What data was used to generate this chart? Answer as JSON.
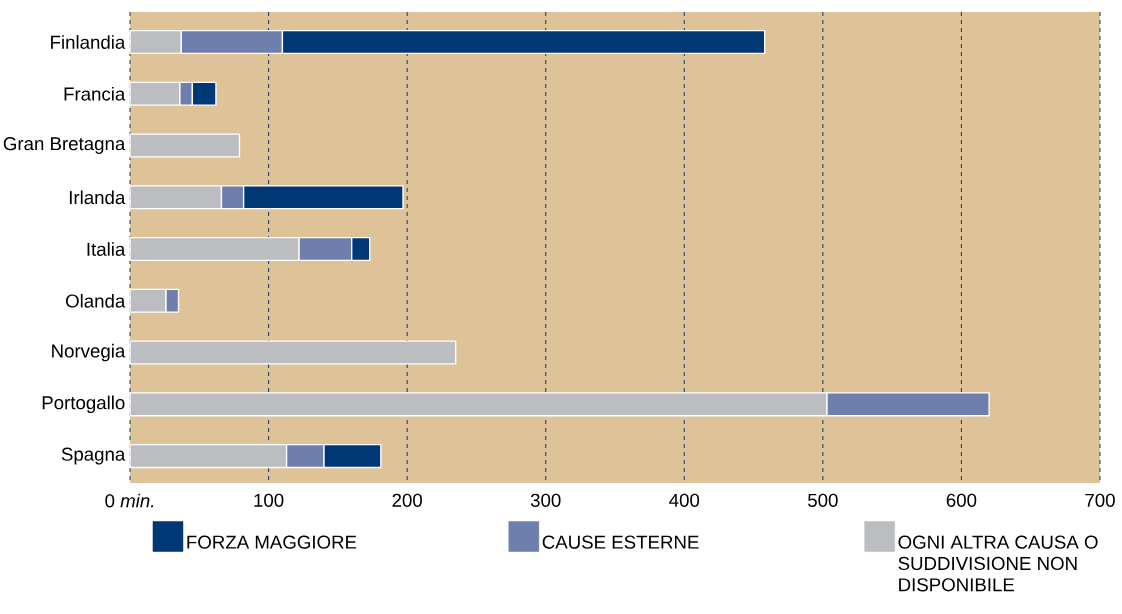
{
  "chart_data": {
    "type": "bar",
    "orientation": "horizontal",
    "stacked": true,
    "categories": [
      "Finlandia",
      "Francia",
      "Gran Bretagna",
      "Irlanda",
      "Italia",
      "Olanda",
      "Norvegia",
      "Portogallo",
      "Spagna"
    ],
    "series": [
      {
        "name": "OGNI ALTRA CAUSA O SUDDIVISIONE NON DISPONIBILE",
        "color": "#bcbdc0",
        "values": [
          37,
          36,
          79,
          66,
          122,
          26,
          235,
          503,
          113
        ]
      },
      {
        "name": "CAUSE ESTERNE",
        "color": "#6f7fad",
        "values": [
          73,
          9,
          null,
          16,
          38,
          9,
          null,
          117,
          27
        ]
      },
      {
        "name": "FORZA MAGGIORE",
        "color": "#003775",
        "values": [
          348,
          17,
          null,
          115,
          13,
          null,
          null,
          null,
          41
        ]
      }
    ],
    "xlim": [
      0,
      700
    ],
    "xticks": [
      {
        "value": 0,
        "label": "0 *min.*"
      },
      100,
      200,
      300,
      400,
      500,
      600,
      700
    ],
    "grid": "x",
    "legend": "bottom"
  }
}
